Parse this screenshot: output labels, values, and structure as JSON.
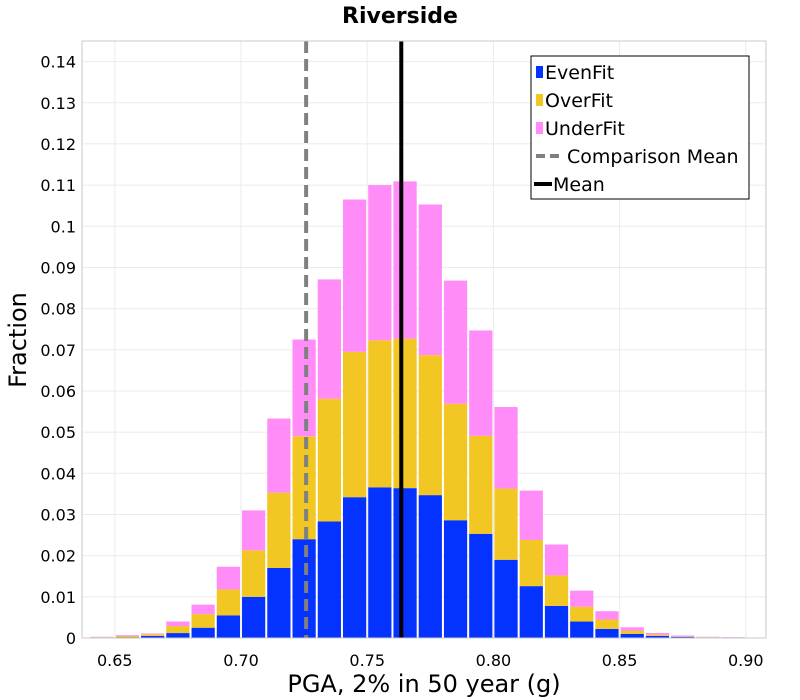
{
  "chart_data": {
    "type": "bar",
    "stacked": true,
    "title": "Riverside",
    "xlabel": "PGA, 2% in 50 year (g)",
    "ylabel": "Fraction",
    "xlim": [
      0.637,
      0.908
    ],
    "ylim": [
      0,
      0.145
    ],
    "grid": true,
    "legend_position": "top-right",
    "x_ticks": [
      "0.65",
      "0.70",
      "0.75",
      "0.80",
      "0.85",
      "0.90"
    ],
    "x_tick_values": [
      0.65,
      0.7,
      0.75,
      0.8,
      0.85,
      0.9
    ],
    "y_ticks": [
      "0",
      "0.01",
      "0.02",
      "0.03",
      "0.04",
      "0.05",
      "0.06",
      "0.07",
      "0.08",
      "0.09",
      "0.1",
      "0.11",
      "0.12",
      "0.13",
      "0.14"
    ],
    "y_tick_values": [
      0,
      0.01,
      0.02,
      0.03,
      0.04,
      0.05,
      0.06,
      0.07,
      0.08,
      0.09,
      0.1,
      0.11,
      0.12,
      0.13,
      0.14
    ],
    "bin_width": 0.01,
    "bin_centers": [
      0.645,
      0.655,
      0.665,
      0.675,
      0.685,
      0.695,
      0.705,
      0.715,
      0.725,
      0.735,
      0.745,
      0.755,
      0.765,
      0.775,
      0.785,
      0.795,
      0.805,
      0.815,
      0.825,
      0.835,
      0.845,
      0.855,
      0.865,
      0.875,
      0.885,
      0.895
    ],
    "series": [
      {
        "name": "EvenFit",
        "color": "#0433ff",
        "values": [
          0.0001,
          0.0002,
          0.0005,
          0.0012,
          0.0025,
          0.0055,
          0.01,
          0.017,
          0.024,
          0.0283,
          0.0342,
          0.0366,
          0.0364,
          0.0347,
          0.0286,
          0.0253,
          0.019,
          0.0126,
          0.0078,
          0.004,
          0.0022,
          0.001,
          0.0005,
          0.0003,
          0.0001,
          0.0001
        ]
      },
      {
        "name": "OverFit",
        "color": "#f2c623",
        "values": [
          0.0001,
          0.0003,
          0.0004,
          0.0017,
          0.0033,
          0.0063,
          0.0113,
          0.0183,
          0.025,
          0.0298,
          0.0353,
          0.0357,
          0.0363,
          0.034,
          0.0283,
          0.0238,
          0.0173,
          0.0112,
          0.0074,
          0.0036,
          0.0023,
          0.0008,
          0.0003,
          0.0001,
          0.0001,
          0.0
        ]
      },
      {
        "name": "UnderFit",
        "color": "#ff8cf7",
        "values": [
          0.0001,
          0.0002,
          0.0002,
          0.0011,
          0.0023,
          0.0055,
          0.0097,
          0.018,
          0.0235,
          0.029,
          0.037,
          0.0377,
          0.0382,
          0.0366,
          0.0299,
          0.0256,
          0.0198,
          0.012,
          0.0075,
          0.0039,
          0.002,
          0.0008,
          0.0004,
          0.0002,
          0.0001,
          0.0001
        ]
      }
    ],
    "reference_lines": [
      {
        "name": "Comparison Mean",
        "x": 0.7258,
        "style": "dashed",
        "color": "#808080"
      },
      {
        "name": "Mean",
        "x": 0.7635,
        "style": "solid",
        "color": "#000000"
      }
    ]
  }
}
